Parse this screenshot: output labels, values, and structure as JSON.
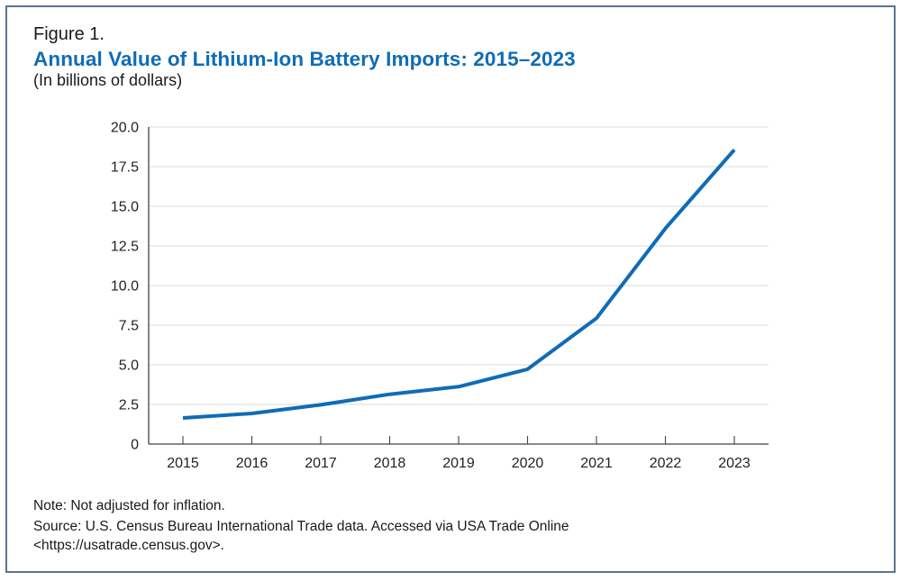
{
  "figure": {
    "label": "Figure 1.",
    "title": "Annual Value of Lithium-Ion Battery Imports: 2015–2023",
    "subtitle": "(In billions of dollars)",
    "note": "Note: Not adjusted for inflation.",
    "source_line1": "Source: U.S. Census Bureau International Trade data. Accessed via USA Trade Online",
    "source_line2": "<https://usatrade.census.gov>."
  },
  "colors": {
    "line": "#0f6cb6",
    "title": "#0f6cb6",
    "border": "#5b7594",
    "grid": "#e0e0e0",
    "axis": "#444444"
  },
  "chart_data": {
    "type": "line",
    "title": "Annual Value of Lithium-Ion Battery Imports: 2015–2023",
    "subtitle": "(In billions of dollars)",
    "xlabel": "",
    "ylabel": "",
    "categories": [
      "2015",
      "2016",
      "2017",
      "2018",
      "2019",
      "2020",
      "2021",
      "2022",
      "2023"
    ],
    "series": [
      {
        "name": "Lithium-ion battery imports",
        "values": [
          1.65,
          1.93,
          2.48,
          3.14,
          3.62,
          4.72,
          7.94,
          13.6,
          18.56
        ]
      }
    ],
    "ylim": [
      0,
      20
    ],
    "yticks": [
      0,
      2.5,
      5.0,
      7.5,
      10.0,
      12.5,
      15.0,
      17.5,
      20.0
    ],
    "ytick_labels": [
      "0",
      "2.5",
      "5.0",
      "7.5",
      "10.0",
      "12.5",
      "15.0",
      "17.5",
      "20.0"
    ],
    "grid": true,
    "legend": "none"
  }
}
